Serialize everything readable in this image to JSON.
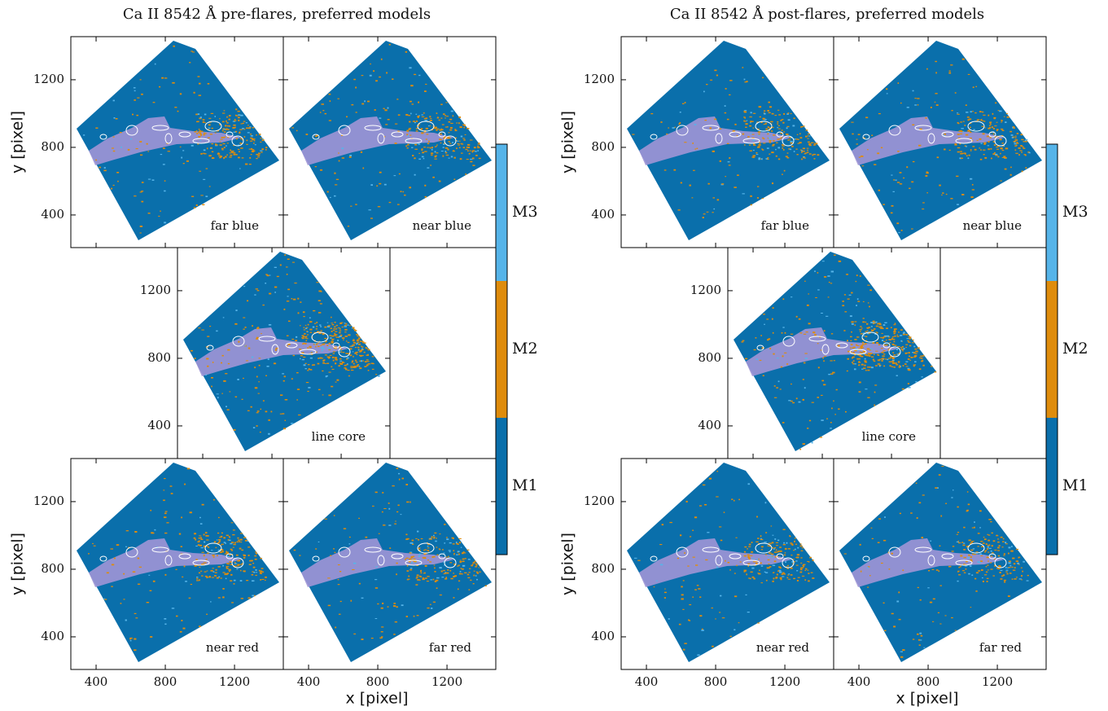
{
  "chart_data": [
    {
      "type": "image-grid",
      "title": "Ca II 8542 Å pre-flares, preferred models",
      "xlabel": "x [pixel]",
      "ylabel": "y [pixel]",
      "xlim": [
        254,
        1482
      ],
      "ylim": [
        207,
        1455
      ],
      "xticks": [
        400,
        800,
        1200
      ],
      "yticks": [
        400,
        800,
        1200
      ],
      "panels": [
        "far blue",
        "near blue",
        "line core",
        "near red",
        "far red"
      ],
      "colorbar": {
        "labels": [
          "M3",
          "M2",
          "M1"
        ],
        "colors": [
          "#56b4e9",
          "#df8c0c",
          "#0a6fab"
        ]
      }
    },
    {
      "type": "image-grid",
      "title": "Ca II 8542 Å post-flares, preferred models",
      "xlabel": "x [pixel]",
      "ylabel": "y [pixel]",
      "xlim": [
        254,
        1482
      ],
      "ylim": [
        207,
        1455
      ],
      "xticks": [
        400,
        800,
        1200
      ],
      "yticks": [
        400,
        800,
        1200
      ],
      "panels": [
        "far blue",
        "near blue",
        "line core",
        "near red",
        "far red"
      ],
      "colorbar": {
        "labels": [
          "M3",
          "M2",
          "M1"
        ],
        "colors": [
          "#56b4e9",
          "#df8c0c",
          "#0a6fab"
        ]
      }
    }
  ]
}
